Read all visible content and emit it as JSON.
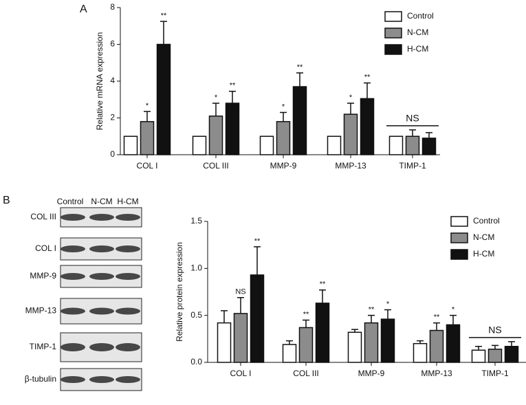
{
  "panels": {
    "a": "A",
    "b": "B"
  },
  "blot": {
    "columns": [
      "Control",
      "N-CM",
      "H-CM"
    ],
    "rows": [
      "COL III",
      "COL I",
      "MMP-9",
      "MMP-13",
      "TIMP-1",
      "β-tubulin"
    ]
  },
  "chart_data": [
    {
      "type": "bar",
      "y_label": "Relative mRNA expression",
      "categories": [
        "COL I",
        "COL III",
        "MMP-9",
        "MMP-13",
        "TIMP-1"
      ],
      "ylim": [
        0,
        8
      ],
      "yticks": [
        0,
        2,
        4,
        6,
        8
      ],
      "legend": "top-right",
      "series": [
        {
          "name": "Control",
          "color": "#ffffff",
          "values": [
            1,
            1,
            1,
            1,
            1
          ],
          "errors": [
            0,
            0,
            0,
            0,
            0
          ],
          "significance": [
            null,
            null,
            null,
            null,
            null
          ]
        },
        {
          "name": "N-CM",
          "color": "#8c8c8c",
          "values": [
            1.8,
            2.1,
            1.8,
            2.2,
            1.0
          ],
          "errors": [
            0.55,
            0.7,
            0.5,
            0.6,
            0.35
          ],
          "significance": [
            "*",
            "*",
            "*",
            "*",
            null
          ]
        },
        {
          "name": "H-CM",
          "color": "#111111",
          "values": [
            6.0,
            2.8,
            3.7,
            3.05,
            0.9
          ],
          "errors": [
            1.25,
            0.65,
            0.75,
            0.85,
            0.3
          ],
          "significance": [
            "**",
            "**",
            "**",
            "**",
            null
          ]
        }
      ],
      "group_annotations": [
        null,
        null,
        null,
        null,
        "NS"
      ]
    },
    {
      "type": "bar",
      "y_label": "Relative protein expression",
      "categories": [
        "COL I",
        "COL III",
        "MMP-9",
        "MMP-13",
        "TIMP-1"
      ],
      "ylim": [
        0,
        1.5
      ],
      "yticks": [
        {
          "value": 0,
          "label": "0.0"
        },
        0.5,
        {
          "value": 1,
          "label": "1.0"
        },
        1.5
      ],
      "legend": "top-right",
      "series": [
        {
          "name": "Control",
          "color": "#ffffff",
          "values": [
            0.42,
            0.19,
            0.32,
            0.2,
            0.13
          ],
          "errors": [
            0.13,
            0.04,
            0.03,
            0.03,
            0.04
          ],
          "significance": [
            null,
            null,
            null,
            null,
            null
          ]
        },
        {
          "name": "N-CM",
          "color": "#8c8c8c",
          "values": [
            0.52,
            0.37,
            0.42,
            0.34,
            0.14
          ],
          "errors": [
            0.17,
            0.08,
            0.08,
            0.08,
            0.04
          ],
          "significance": [
            "NS",
            "**",
            "**",
            "**",
            null
          ]
        },
        {
          "name": "H-CM",
          "color": "#111111",
          "values": [
            0.93,
            0.63,
            0.46,
            0.4,
            0.17
          ],
          "errors": [
            0.3,
            0.14,
            0.1,
            0.1,
            0.05
          ],
          "significance": [
            "**",
            "**",
            "*",
            "*",
            null
          ]
        }
      ],
      "group_annotations": [
        null,
        null,
        null,
        null,
        "NS"
      ]
    }
  ]
}
